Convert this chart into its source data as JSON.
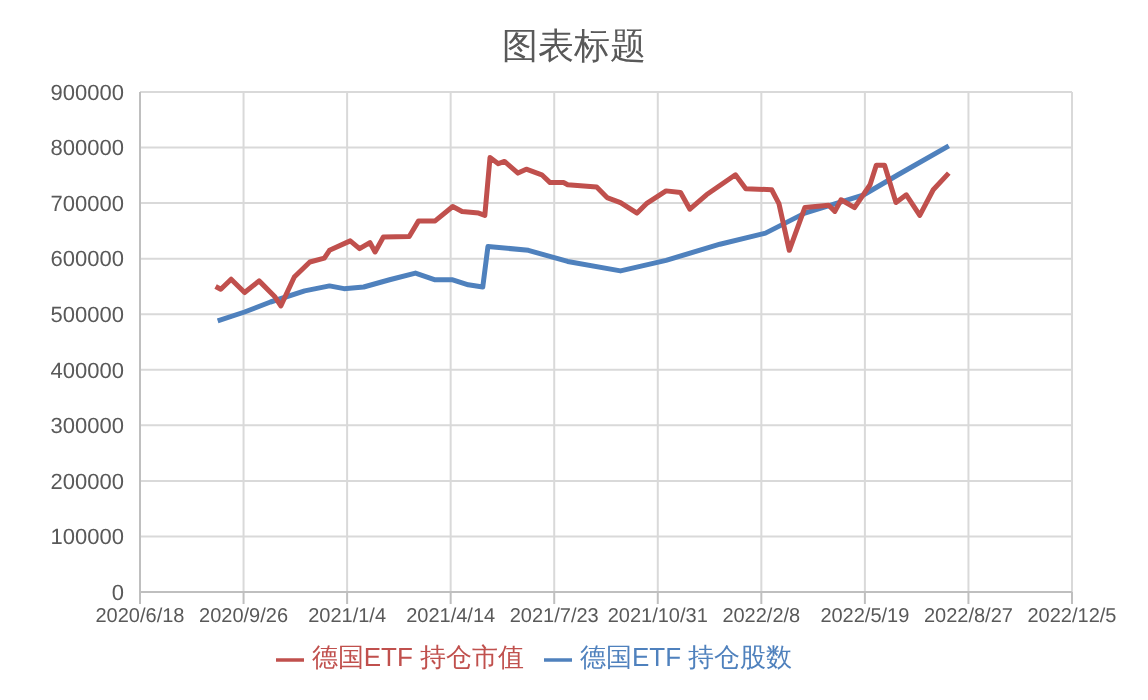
{
  "chart_data": {
    "type": "line",
    "title": "图表标题",
    "legend": "bottom",
    "grid": true,
    "marker": "none",
    "line_style": "solid",
    "xlim": [
      "2020-06-18",
      "2022-12-05"
    ],
    "xticks": [
      {
        "value": "2020-06-18",
        "label": "2020/6/18"
      },
      {
        "value": "2020-09-26",
        "label": "2020/9/26"
      },
      {
        "value": "2021-01-04",
        "label": "2021/1/4"
      },
      {
        "value": "2021-04-14",
        "label": "2021/4/14"
      },
      {
        "value": "2021-07-23",
        "label": "2021/7/23"
      },
      {
        "value": "2021-10-31",
        "label": "2021/10/31"
      },
      {
        "value": "2022-02-08",
        "label": "2022/2/8"
      },
      {
        "value": "2022-05-19",
        "label": "2022/5/19"
      },
      {
        "value": "2022-08-27",
        "label": "2022/8/27"
      },
      {
        "value": "2022-12-05",
        "label": "2022/12/5"
      }
    ],
    "ylim": [
      0,
      900000
    ],
    "yticks": [
      0,
      100000,
      200000,
      300000,
      400000,
      500000,
      600000,
      700000,
      800000,
      900000
    ],
    "series": [
      {
        "name": "德国ETF 持仓股数",
        "color": "#4f81bd",
        "x": [
          "2020-09-01",
          "2020-09-27",
          "2020-10-22",
          "2020-11-24",
          "2020-12-18",
          "2021-01-01",
          "2021-01-20",
          "2021-02-14",
          "2021-03-11",
          "2021-03-30",
          "2021-04-16",
          "2021-05-01",
          "2021-05-15",
          "2021-05-20",
          "2021-06-28",
          "2021-08-05",
          "2021-09-25",
          "2021-11-08",
          "2021-12-30",
          "2022-02-12",
          "2022-03-22",
          "2022-05-18",
          "2022-06-20",
          "2022-08-08"
        ],
        "values": [
          488000,
          504000,
          522000,
          542000,
          551000,
          546000,
          549000,
          562000,
          574000,
          562000,
          562000,
          553000,
          549000,
          622000,
          615000,
          595000,
          578000,
          597000,
          626000,
          646000,
          682000,
          715000,
          751000,
          803000
        ]
      },
      {
        "name": "德国ETF 持仓市值",
        "color": "#c0504d",
        "x": [
          "2020-08-30",
          "2020-09-04",
          "2020-09-14",
          "2020-09-27",
          "2020-10-11",
          "2020-10-26",
          "2020-11-01",
          "2020-11-14",
          "2020-11-29",
          "2020-12-13",
          "2020-12-18",
          "2021-01-07",
          "2021-01-16",
          "2021-01-26",
          "2021-01-31",
          "2021-02-08",
          "2021-03-05",
          "2021-03-14",
          "2021-03-30",
          "2021-04-16",
          "2021-04-25",
          "2021-05-11",
          "2021-05-17",
          "2021-05-22",
          "2021-05-30",
          "2021-06-05",
          "2021-06-18",
          "2021-06-26",
          "2021-07-11",
          "2021-07-19",
          "2021-08-01",
          "2021-08-05",
          "2021-09-02",
          "2021-09-12",
          "2021-09-25",
          "2021-10-11",
          "2021-10-20",
          "2021-11-08",
          "2021-11-22",
          "2021-12-01",
          "2021-12-17",
          "2022-01-14",
          "2022-01-24",
          "2022-02-18",
          "2022-02-25",
          "2022-03-07",
          "2022-03-22",
          "2022-04-14",
          "2022-04-20",
          "2022-04-26",
          "2022-05-09",
          "2022-05-24",
          "2022-05-30",
          "2022-06-07",
          "2022-06-18",
          "2022-06-28",
          "2022-07-11",
          "2022-07-24",
          "2022-08-08"
        ],
        "values": [
          550000,
          545000,
          563000,
          539000,
          560000,
          532000,
          515000,
          567000,
          594000,
          601000,
          615000,
          632000,
          618000,
          629000,
          612000,
          639000,
          640000,
          668000,
          668000,
          694000,
          685000,
          682000,
          678000,
          782000,
          771000,
          775000,
          754000,
          761000,
          751000,
          737000,
          737000,
          733000,
          729000,
          710000,
          701000,
          682000,
          699000,
          722000,
          719000,
          689000,
          715000,
          751000,
          726000,
          724000,
          699000,
          615000,
          692000,
          696000,
          685000,
          706000,
          692000,
          733000,
          768000,
          768000,
          701000,
          715000,
          678000,
          724000,
          754000
        ]
      }
    ]
  }
}
